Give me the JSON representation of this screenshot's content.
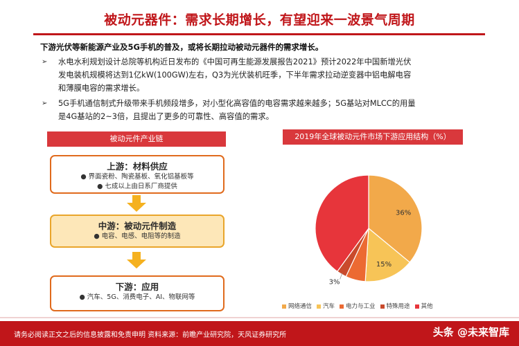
{
  "title": "被动元器件：需求长期增长，有望迎来一波景气周期",
  "intro": "下游光伏等新能源产业及5G手机的普及，或将长期拉动被动元器件的需求增长。",
  "bullets": [
    {
      "lines": [
        "水电水利规划设计总院等机构近日发布的《中国可再生能源发展报告2021》预计2022年中国新增光伏",
        "发电装机规模将达到1亿kW(100GW)左右，Q3为光伏装机旺季，下半年需求拉动逆变器中铝电解电容",
        "和薄膜电容的需求增长。"
      ]
    },
    {
      "lines": [
        "5G手机通信制式升级带来手机频段增多，对小型化高容值的电容需求越来越多；5G基站对MLCC的用量",
        "是4G基站的2~3倍，且提出了更多的可靠性、高容值的需求。"
      ]
    }
  ],
  "chain": {
    "header": "被动元件产业链",
    "upstream": {
      "title": "上游：材料供应",
      "items": [
        "界面瓷粉、陶瓷基板、氧化铝基板等",
        "七成以上由日系厂商提供"
      ]
    },
    "midstream": {
      "title": "中游：被动元件制造",
      "items": [
        "电容、电感、电阻等的制造"
      ]
    },
    "downstream": {
      "title": "下游：应用",
      "items": [
        "汽车、5G、消费电子、AI、物联网等"
      ]
    }
  },
  "pie": {
    "header": "2019年全球被动元件市场下游应用结构（%）",
    "legend": [
      "网络通信",
      "汽车",
      "电力与工业",
      "特殊用途",
      "其他"
    ]
  },
  "chart_data": {
    "type": "pie",
    "title": "2019年全球被动元件市场下游应用结构（%）",
    "categories": [
      "网络通信",
      "汽车",
      "电力与工业",
      "特殊用途",
      "其他"
    ],
    "values": [
      36,
      15,
      6,
      3,
      40
    ],
    "labels": [
      "36%",
      "15%",
      "",
      "3%",
      ""
    ],
    "colors": [
      "#f2a94a",
      "#f7c457",
      "#ec6a32",
      "#c94a2c",
      "#e7353b"
    ]
  },
  "footer": {
    "text": "请务必阅读正文之后的信息披露和免责申明  资料来源：前瞻产业研究院，天风证券研究所",
    "watermark": "头条 @未来智库"
  }
}
